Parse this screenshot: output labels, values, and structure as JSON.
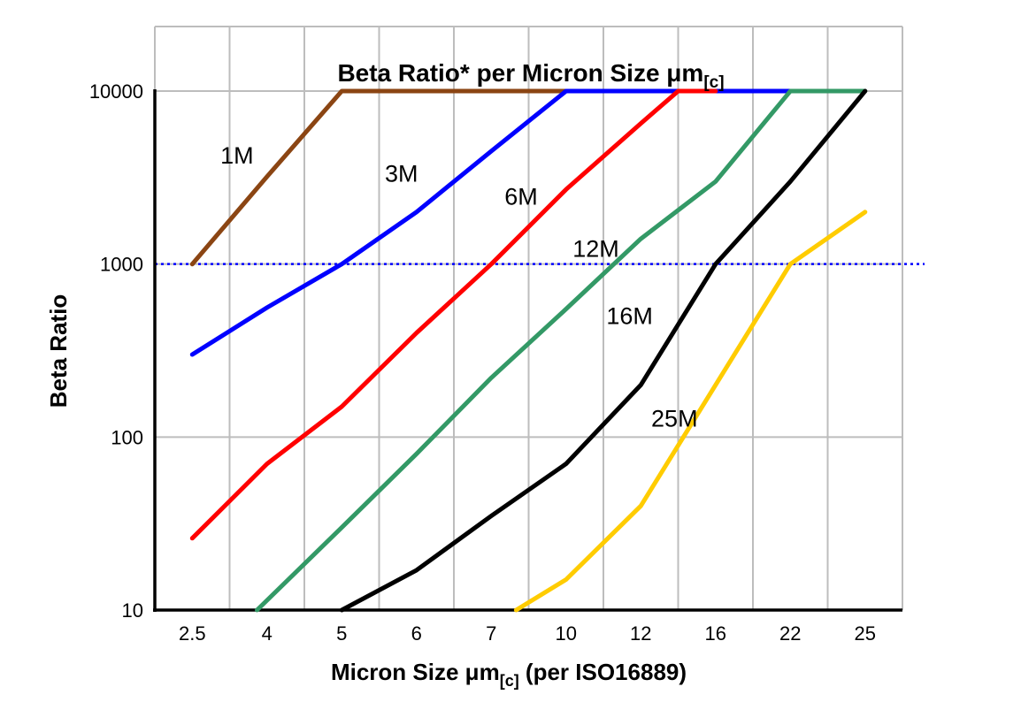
{
  "title": {
    "part1": "Beta Ratio* per Micron Size μm",
    "sub": "[c]"
  },
  "y_axis_title": "Beta Ratio",
  "x_axis_title": {
    "part1": "Micron Size μm",
    "sub": "[c]",
    "part2": " (per ISO16889)"
  },
  "colors": {
    "grid": "#bdbdbd",
    "axis": "#000000",
    "background": "#ffffff"
  },
  "chart_data": {
    "type": "line",
    "x_scale": "categorical",
    "y_scale": "log",
    "ylim": [
      10,
      10000
    ],
    "x_categories": [
      2.5,
      4,
      5,
      6,
      7,
      10,
      12,
      16,
      22,
      25
    ],
    "y_ticks": [
      10,
      100,
      1000,
      10000
    ],
    "grid": true,
    "legend_position": "inline-labels",
    "reference_line": {
      "y": 1000,
      "color": "#0000FF",
      "style": "dotted"
    },
    "series": [
      {
        "name": "1M",
        "color": "#8B4513",
        "points": [
          [
            2.5,
            1000
          ],
          [
            4,
            3200
          ],
          [
            5,
            10000
          ],
          [
            10,
            10000
          ]
        ],
        "label_pos": [
          3.4,
          3800
        ]
      },
      {
        "name": "3M",
        "color": "#0000FF",
        "points": [
          [
            2.5,
            300
          ],
          [
            4,
            560
          ],
          [
            5,
            1000
          ],
          [
            6,
            2000
          ],
          [
            7,
            4500
          ],
          [
            10,
            10000
          ],
          [
            22,
            10000
          ]
        ],
        "label_pos": [
          5.8,
          3000
        ]
      },
      {
        "name": "6M",
        "color": "#FF0000",
        "points": [
          [
            2.5,
            26
          ],
          [
            4,
            70
          ],
          [
            5,
            150
          ],
          [
            6,
            400
          ],
          [
            7,
            1000
          ],
          [
            10,
            2700
          ],
          [
            12,
            6500
          ],
          [
            14,
            10000
          ],
          [
            16,
            10000
          ]
        ],
        "label_pos": [
          8.2,
          2200
        ]
      },
      {
        "name": "12M",
        "color": "#339966",
        "points": [
          [
            3.8,
            10
          ],
          [
            5,
            30
          ],
          [
            6,
            80
          ],
          [
            7,
            220
          ],
          [
            10,
            550
          ],
          [
            12,
            1400
          ],
          [
            16,
            3000
          ],
          [
            22,
            10000
          ],
          [
            25,
            10000
          ]
        ],
        "label_pos": [
          10.8,
          1100
        ]
      },
      {
        "name": "16M",
        "color": "#000000",
        "points": [
          [
            5,
            10
          ],
          [
            6,
            17
          ],
          [
            7,
            35
          ],
          [
            10,
            70
          ],
          [
            12,
            200
          ],
          [
            16,
            1000
          ],
          [
            22,
            3000
          ],
          [
            25,
            10000
          ]
        ],
        "label_pos": [
          11.7,
          450
        ]
      },
      {
        "name": "25M",
        "color": "#FFCC00",
        "points": [
          [
            8,
            10
          ],
          [
            10,
            15
          ],
          [
            12,
            40
          ],
          [
            16,
            200
          ],
          [
            22,
            1000
          ],
          [
            25,
            2000
          ]
        ],
        "label_pos": [
          13.8,
          115
        ]
      }
    ]
  }
}
